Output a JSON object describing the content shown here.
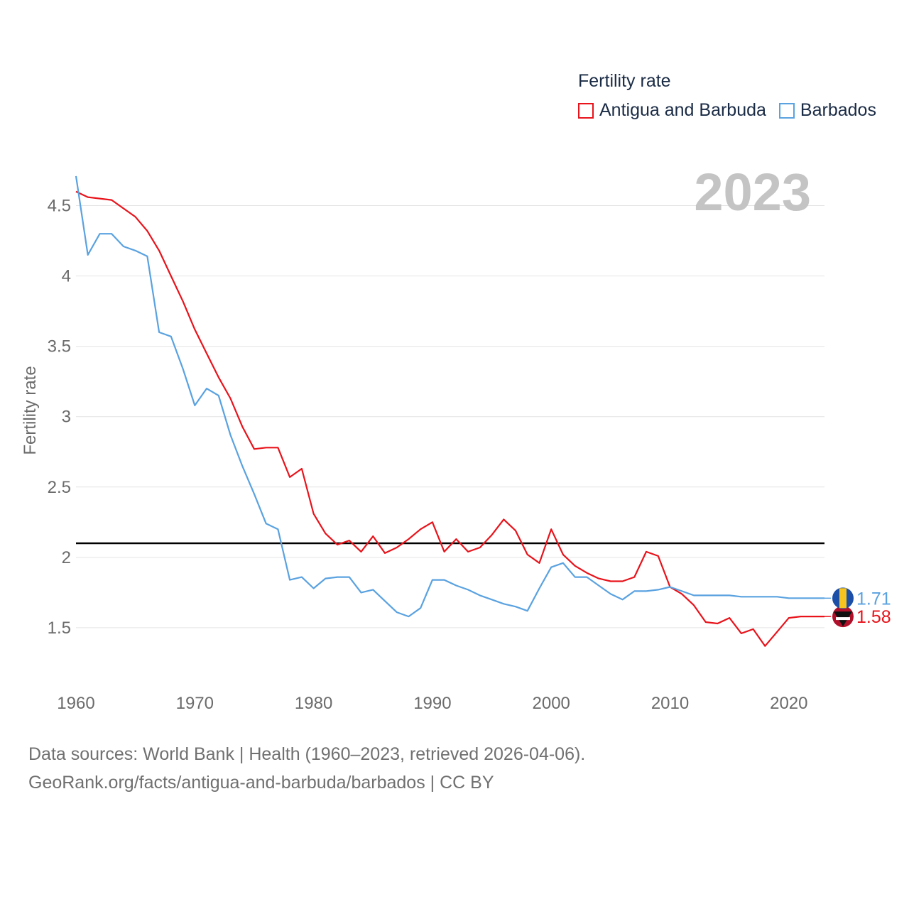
{
  "legend": {
    "title": "Fertility rate",
    "series": [
      {
        "name": "Antigua and Barbuda",
        "color": "#e8131b"
      },
      {
        "name": "Barbados",
        "color": "#5aa2e0"
      }
    ]
  },
  "year_label": "2023",
  "footer": {
    "line1": "Data sources: World Bank | Health (1960–2023, retrieved 2026-04-06).",
    "line2": "GeoRank.org/facts/antigua-and-barbuda/barbados | CC BY"
  },
  "chart_data": {
    "type": "line",
    "title": "Fertility rate",
    "xlabel": "",
    "ylabel": "Fertility rate",
    "xlim": [
      1960,
      2023
    ],
    "ylim": [
      1.0,
      4.75
    ],
    "yticks": [
      1.5,
      2,
      2.5,
      3,
      3.5,
      4,
      4.5
    ],
    "ytick_labels": [
      "1.5",
      "2",
      "2.5",
      "3",
      "3.5",
      "4",
      "4.5"
    ],
    "xticks": [
      1960,
      1970,
      1980,
      1990,
      2000,
      2010,
      2020
    ],
    "xtick_labels": [
      "1960",
      "1970",
      "1980",
      "1990",
      "2000",
      "2010",
      "2020"
    ],
    "reference_line": {
      "y": 2.1,
      "color": "#000000"
    },
    "x": [
      1960,
      1961,
      1962,
      1963,
      1964,
      1965,
      1966,
      1967,
      1968,
      1969,
      1970,
      1971,
      1972,
      1973,
      1974,
      1975,
      1976,
      1977,
      1978,
      1979,
      1980,
      1981,
      1982,
      1983,
      1984,
      1985,
      1986,
      1987,
      1988,
      1989,
      1990,
      1991,
      1992,
      1993,
      1994,
      1995,
      1996,
      1997,
      1998,
      1999,
      2000,
      2001,
      2002,
      2003,
      2004,
      2005,
      2006,
      2007,
      2008,
      2009,
      2010,
      2011,
      2012,
      2013,
      2014,
      2015,
      2016,
      2017,
      2018,
      2019,
      2020,
      2021,
      2022,
      2023
    ],
    "series": [
      {
        "name": "Antigua and Barbuda",
        "color": "#e8131b",
        "end_label": "1.58",
        "values": [
          4.6,
          4.56,
          4.55,
          4.54,
          4.48,
          4.42,
          4.32,
          4.18,
          4.0,
          3.82,
          3.62,
          3.45,
          3.28,
          3.13,
          2.93,
          2.77,
          2.78,
          2.78,
          2.57,
          2.63,
          2.31,
          2.17,
          2.09,
          2.12,
          2.04,
          2.15,
          2.03,
          2.07,
          2.13,
          2.2,
          2.25,
          2.04,
          2.13,
          2.04,
          2.07,
          2.16,
          2.27,
          2.19,
          2.02,
          1.96,
          2.2,
          2.02,
          1.94,
          1.89,
          1.85,
          1.83,
          1.83,
          1.86,
          2.04,
          2.01,
          1.79,
          1.74,
          1.66,
          1.54,
          1.53,
          1.57,
          1.46,
          1.49,
          1.37,
          1.47,
          1.57,
          1.58,
          1.58,
          1.58
        ]
      },
      {
        "name": "Barbados",
        "color": "#5aa2e0",
        "end_label": "1.71",
        "values": [
          4.71,
          4.15,
          4.3,
          4.3,
          4.21,
          4.18,
          4.14,
          3.6,
          3.57,
          3.34,
          3.08,
          3.2,
          3.15,
          2.87,
          2.65,
          2.45,
          2.24,
          2.2,
          1.84,
          1.86,
          1.78,
          1.85,
          1.86,
          1.86,
          1.75,
          1.77,
          1.69,
          1.61,
          1.58,
          1.64,
          1.84,
          1.84,
          1.8,
          1.77,
          1.73,
          1.7,
          1.67,
          1.65,
          1.62,
          1.78,
          1.93,
          1.96,
          1.86,
          1.86,
          1.8,
          1.74,
          1.7,
          1.76,
          1.76,
          1.77,
          1.79,
          1.76,
          1.73,
          1.73,
          1.73,
          1.73,
          1.72,
          1.72,
          1.72,
          1.72,
          1.71,
          1.71,
          1.71,
          1.71
        ]
      }
    ]
  }
}
